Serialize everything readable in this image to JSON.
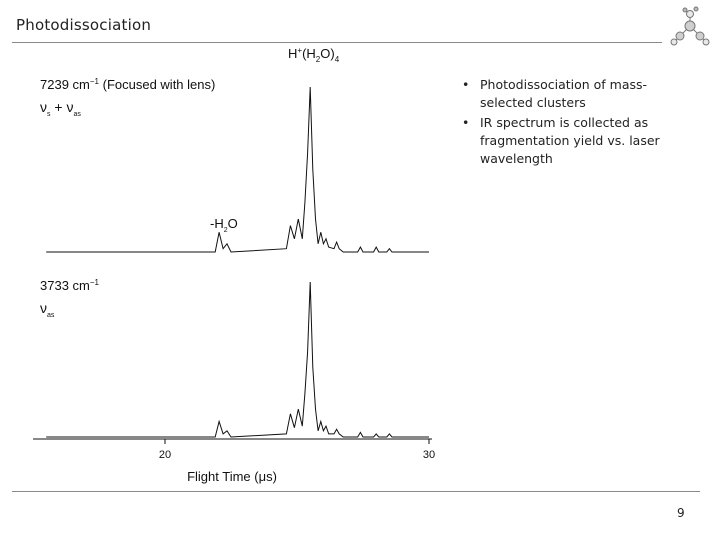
{
  "slide": {
    "title": "Photodissociation",
    "page_number": "9"
  },
  "bullets": [
    "Photodissociation of mass-selected clusters",
    "IR spectrum is collected as fragmentation yield vs. laser wavelength"
  ],
  "figure": {
    "ion_label": {
      "base": "H",
      "sup": "+",
      "mid": "(H",
      "sub1": "2",
      "end": "O)",
      "sub2": "4"
    },
    "panels": [
      {
        "wavenumber": "7239 cm",
        "exponent": "−1",
        "note": " (Focused with lens)",
        "mode": {
          "nu1": "ν",
          "sub1": "s",
          "plus": " + ",
          "nu2": "ν",
          "sub2": "as"
        },
        "fragment_label": {
          "pre": "-H",
          "sub": "2",
          "post": "O"
        }
      },
      {
        "wavenumber": "3733 cm",
        "exponent": "−1",
        "mode": {
          "nu1": "ν",
          "sub1": "as"
        }
      }
    ],
    "x_axis": {
      "label": "Flight Time (μs)",
      "ticks": [
        "20",
        "30"
      ]
    }
  },
  "chart_data": {
    "type": "line",
    "x_unit": "μs",
    "xlim": [
      15.5,
      30
    ],
    "x_ticks": [
      20,
      30
    ],
    "series": [
      {
        "x": [
          15.5,
          21.9,
          22.05,
          22.2,
          22.35,
          22.5,
          24.6,
          24.75,
          24.9,
          25.05,
          25.2,
          25.3,
          25.4,
          25.5,
          25.6,
          25.7,
          25.8,
          25.9,
          26.0,
          26.1,
          26.2,
          26.4,
          26.5,
          26.6,
          26.75,
          27.3,
          27.4,
          27.5,
          27.9,
          28.0,
          28.1,
          28.4,
          28.5,
          28.6,
          30.0
        ],
        "y": [
          0,
          0,
          0.12,
          0.02,
          0.05,
          0,
          0.02,
          0.16,
          0.08,
          0.2,
          0.08,
          0.3,
          0.6,
          1.0,
          0.5,
          0.2,
          0.05,
          0.12,
          0.05,
          0.08,
          0.03,
          0.02,
          0.06,
          0.02,
          0,
          0,
          0.03,
          0,
          0,
          0.03,
          0,
          0,
          0.02,
          0,
          0
        ]
      },
      {
        "x": [
          15.5,
          21.9,
          22.05,
          22.2,
          22.35,
          22.5,
          24.6,
          24.75,
          24.9,
          25.05,
          25.2,
          25.3,
          25.4,
          25.5,
          25.6,
          25.7,
          25.8,
          25.9,
          26.0,
          26.1,
          26.2,
          26.4,
          26.5,
          26.6,
          26.75,
          27.3,
          27.4,
          27.5,
          27.9,
          28.0,
          28.1,
          28.4,
          28.5,
          28.6,
          30.0
        ],
        "y": [
          0,
          0,
          0.1,
          0.02,
          0.04,
          0,
          0.02,
          0.15,
          0.06,
          0.18,
          0.07,
          0.28,
          0.55,
          1.0,
          0.45,
          0.18,
          0.04,
          0.1,
          0.04,
          0.07,
          0.02,
          0.02,
          0.05,
          0.02,
          0,
          0,
          0.03,
          0,
          0,
          0.02,
          0,
          0,
          0.02,
          0,
          0
        ]
      }
    ]
  }
}
